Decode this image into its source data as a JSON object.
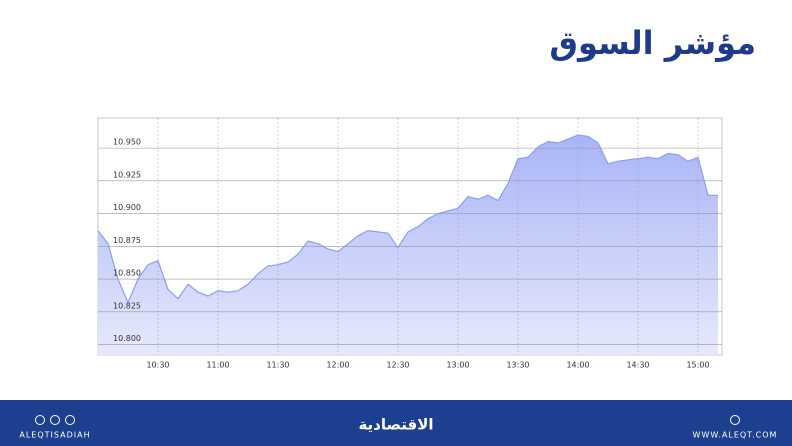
{
  "chart_data": {
    "type": "area",
    "title": "مؤشر السوق",
    "x": [
      "10:00",
      "10:05",
      "10:10",
      "10:15",
      "10:20",
      "10:25",
      "10:30",
      "10:35",
      "10:40",
      "10:45",
      "10:50",
      "10:55",
      "11:00",
      "11:05",
      "11:10",
      "11:15",
      "11:20",
      "11:25",
      "11:30",
      "11:35",
      "11:40",
      "11:45",
      "11:50",
      "11:55",
      "12:00",
      "12:05",
      "12:10",
      "12:15",
      "12:20",
      "12:25",
      "12:30",
      "12:35",
      "12:40",
      "12:45",
      "12:50",
      "12:55",
      "13:00",
      "13:05",
      "13:10",
      "13:15",
      "13:20",
      "13:25",
      "13:30",
      "13:35",
      "13:40",
      "13:45",
      "13:50",
      "13:55",
      "14:00",
      "14:05",
      "14:10",
      "14:15",
      "14:20",
      "14:25",
      "14:30",
      "14:35",
      "14:40",
      "14:45",
      "14:50",
      "14:55",
      "15:00",
      "15:05",
      "15:10"
    ],
    "values": [
      10.887,
      10.877,
      10.85,
      10.832,
      10.85,
      10.861,
      10.864,
      10.842,
      10.835,
      10.846,
      10.84,
      10.837,
      10.841,
      10.84,
      10.841,
      10.846,
      10.854,
      10.86,
      10.861,
      10.863,
      10.869,
      10.879,
      10.877,
      10.873,
      10.871,
      10.877,
      10.883,
      10.887,
      10.886,
      10.885,
      10.874,
      10.886,
      10.89,
      10.896,
      10.9,
      10.902,
      10.904,
      10.913,
      10.911,
      10.914,
      10.91,
      10.923,
      10.942,
      10.943,
      10.951,
      10.955,
      10.954,
      10.957,
      10.96,
      10.959,
      10.954,
      10.938,
      10.94,
      10.941,
      10.942,
      10.943,
      10.942,
      10.946,
      10.945,
      10.94,
      10.943,
      10.914,
      10.914
    ],
    "color": "#8f9df2",
    "xlim": [
      "10:00",
      "15:12"
    ],
    "xticks": [
      "10:30",
      "11:00",
      "11:30",
      "12:00",
      "12:30",
      "13:00",
      "13:30",
      "14:00",
      "14:30",
      "15:00"
    ],
    "ylim": [
      10.792,
      10.973
    ],
    "yticks": [
      {
        "value": 10.8,
        "label": "10.800"
      },
      {
        "value": 10.825,
        "label": "10.825"
      },
      {
        "value": 10.85,
        "label": "10.850"
      },
      {
        "value": 10.875,
        "label": "10.875"
      },
      {
        "value": 10.9,
        "label": "10.900"
      },
      {
        "value": 10.925,
        "label": "10.925"
      },
      {
        "value": 10.95,
        "label": "10.950"
      }
    ],
    "grid": true
  },
  "footer": {
    "brand": "الاقتصادية",
    "handle": "ALEQTISADIAH",
    "website": "WWW.ALEQT.COM"
  }
}
